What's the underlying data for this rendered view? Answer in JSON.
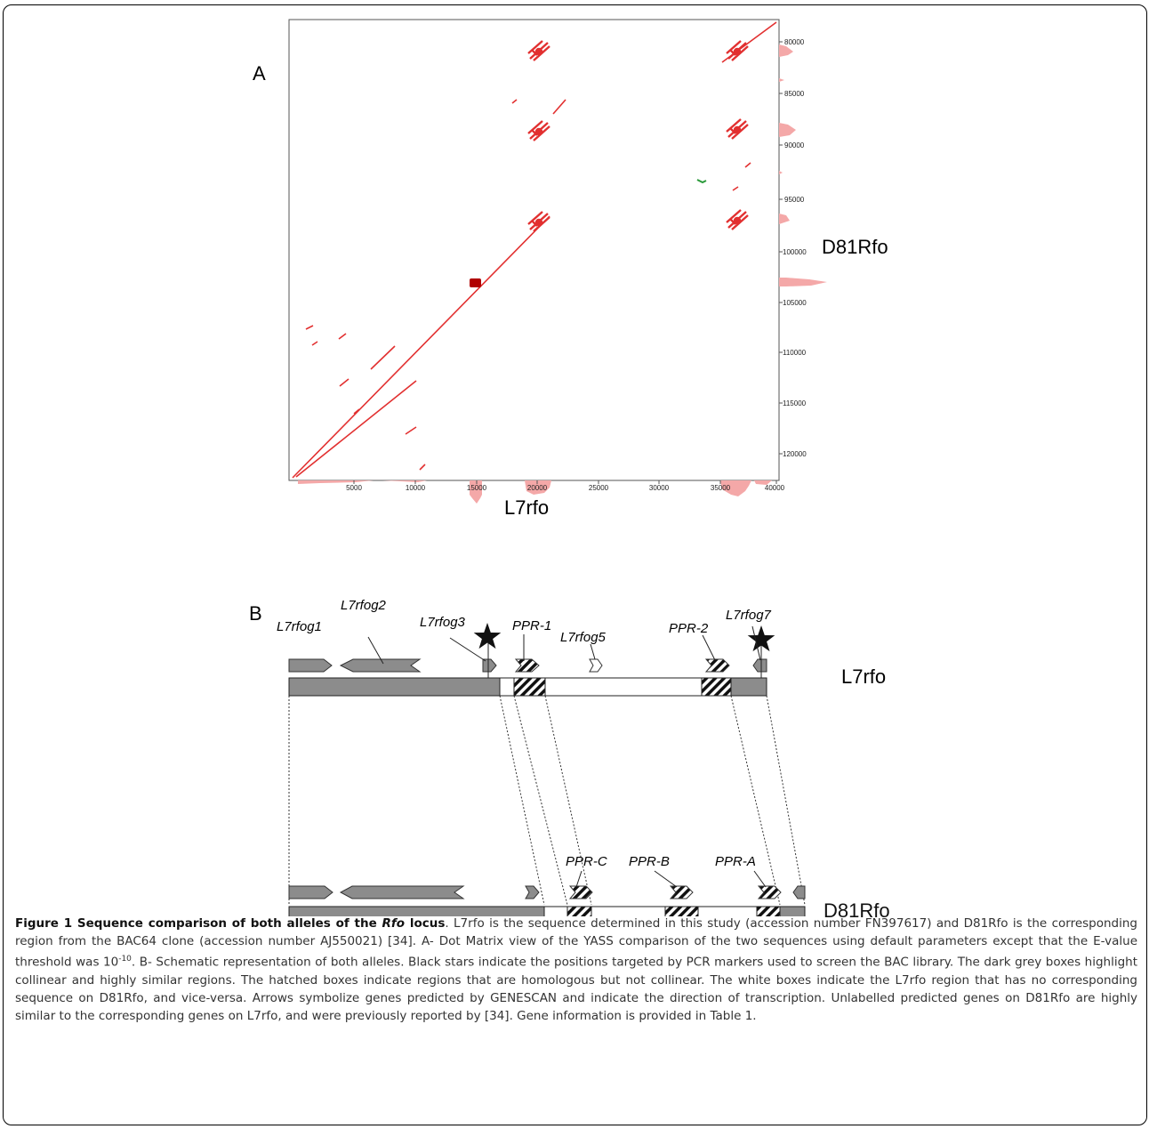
{
  "panel_a": {
    "label": "A",
    "x_axis_label": "L7rfo",
    "y_axis_label": "D81Rfo",
    "x_ticks": [
      "5000",
      "10000",
      "15000",
      "20000",
      "25000",
      "30000",
      "35000",
      "40000"
    ],
    "y_ticks": [
      "80000",
      "85000",
      "90000",
      "95000",
      "100000",
      "105000",
      "110000",
      "115000",
      "120000"
    ]
  },
  "chart_data": {
    "type": "scatter",
    "title": "",
    "xlabel": "L7rfo",
    "ylabel": "D81Rfo",
    "xlim": [
      0,
      40000
    ],
    "ylim": [
      122000,
      79000
    ],
    "grid": false,
    "colors": {
      "hit": "#e23030",
      "highlight": "#b00000",
      "reverse": "#2a9a3a",
      "density": "#f4a8a8"
    },
    "series": [
      {
        "values": [
          [
            0,
            122000
          ],
          [
            3000,
            119800
          ],
          [
            9000,
            115200
          ],
          [
            15200,
            103300
          ],
          [
            15400,
            103100
          ],
          [
            21000,
            98800
          ]
        ]
      },
      {
        "values": [
          [
            0,
            121800
          ],
          [
            10000,
            114500
          ]
        ]
      },
      {
        "values": [
          [
            34800,
            81700
          ],
          [
            40000,
            79000
          ]
        ]
      }
    ]
  },
  "panel_b": {
    "label": "B",
    "track_top_label": "L7rfo",
    "track_bottom_label": "D81Rfo",
    "genes_top": [
      "L7rfog1",
      "L7rfog2",
      "L7rfog3",
      "PPR-1",
      "L7rfog5",
      "PPR-2",
      "L7rfog7"
    ],
    "genes_bottom": [
      "PPR-C",
      "PPR-B",
      "PPR-A"
    ]
  },
  "caption": {
    "title_pre": "Figure 1 Sequence comparison of both alleles of the ",
    "title_italic": "Rfo",
    "title_post": " locus",
    "body_1": ". L7rfo is the sequence determined in this study (accession number FN397617) and D81Rfo is the corresponding region from the BAC64 clone (accession number AJ550021) [34]. A- Dot Matrix view of the YASS comparison of the two sequences using default parameters except that the E-value threshold was 10",
    "superscript": "-10",
    "body_2": ". B- Schematic representation of both alleles. Black stars indicate the positions targeted by PCR markers used to screen the BAC library. The dark grey boxes highlight collinear and highly similar regions. The hatched boxes indicate regions that are homologous but not collinear. The white boxes indicate the L7rfo region that has no corresponding sequence on D81Rfo, and vice-versa. Arrows symbolize genes predicted by GENESCAN and indicate the direction of transcription. Unlabelled predicted genes on D81Rfo are highly similar to the corresponding genes on L7rfo, and were previously reported by [34]. Gene information is provided in Table 1."
  }
}
